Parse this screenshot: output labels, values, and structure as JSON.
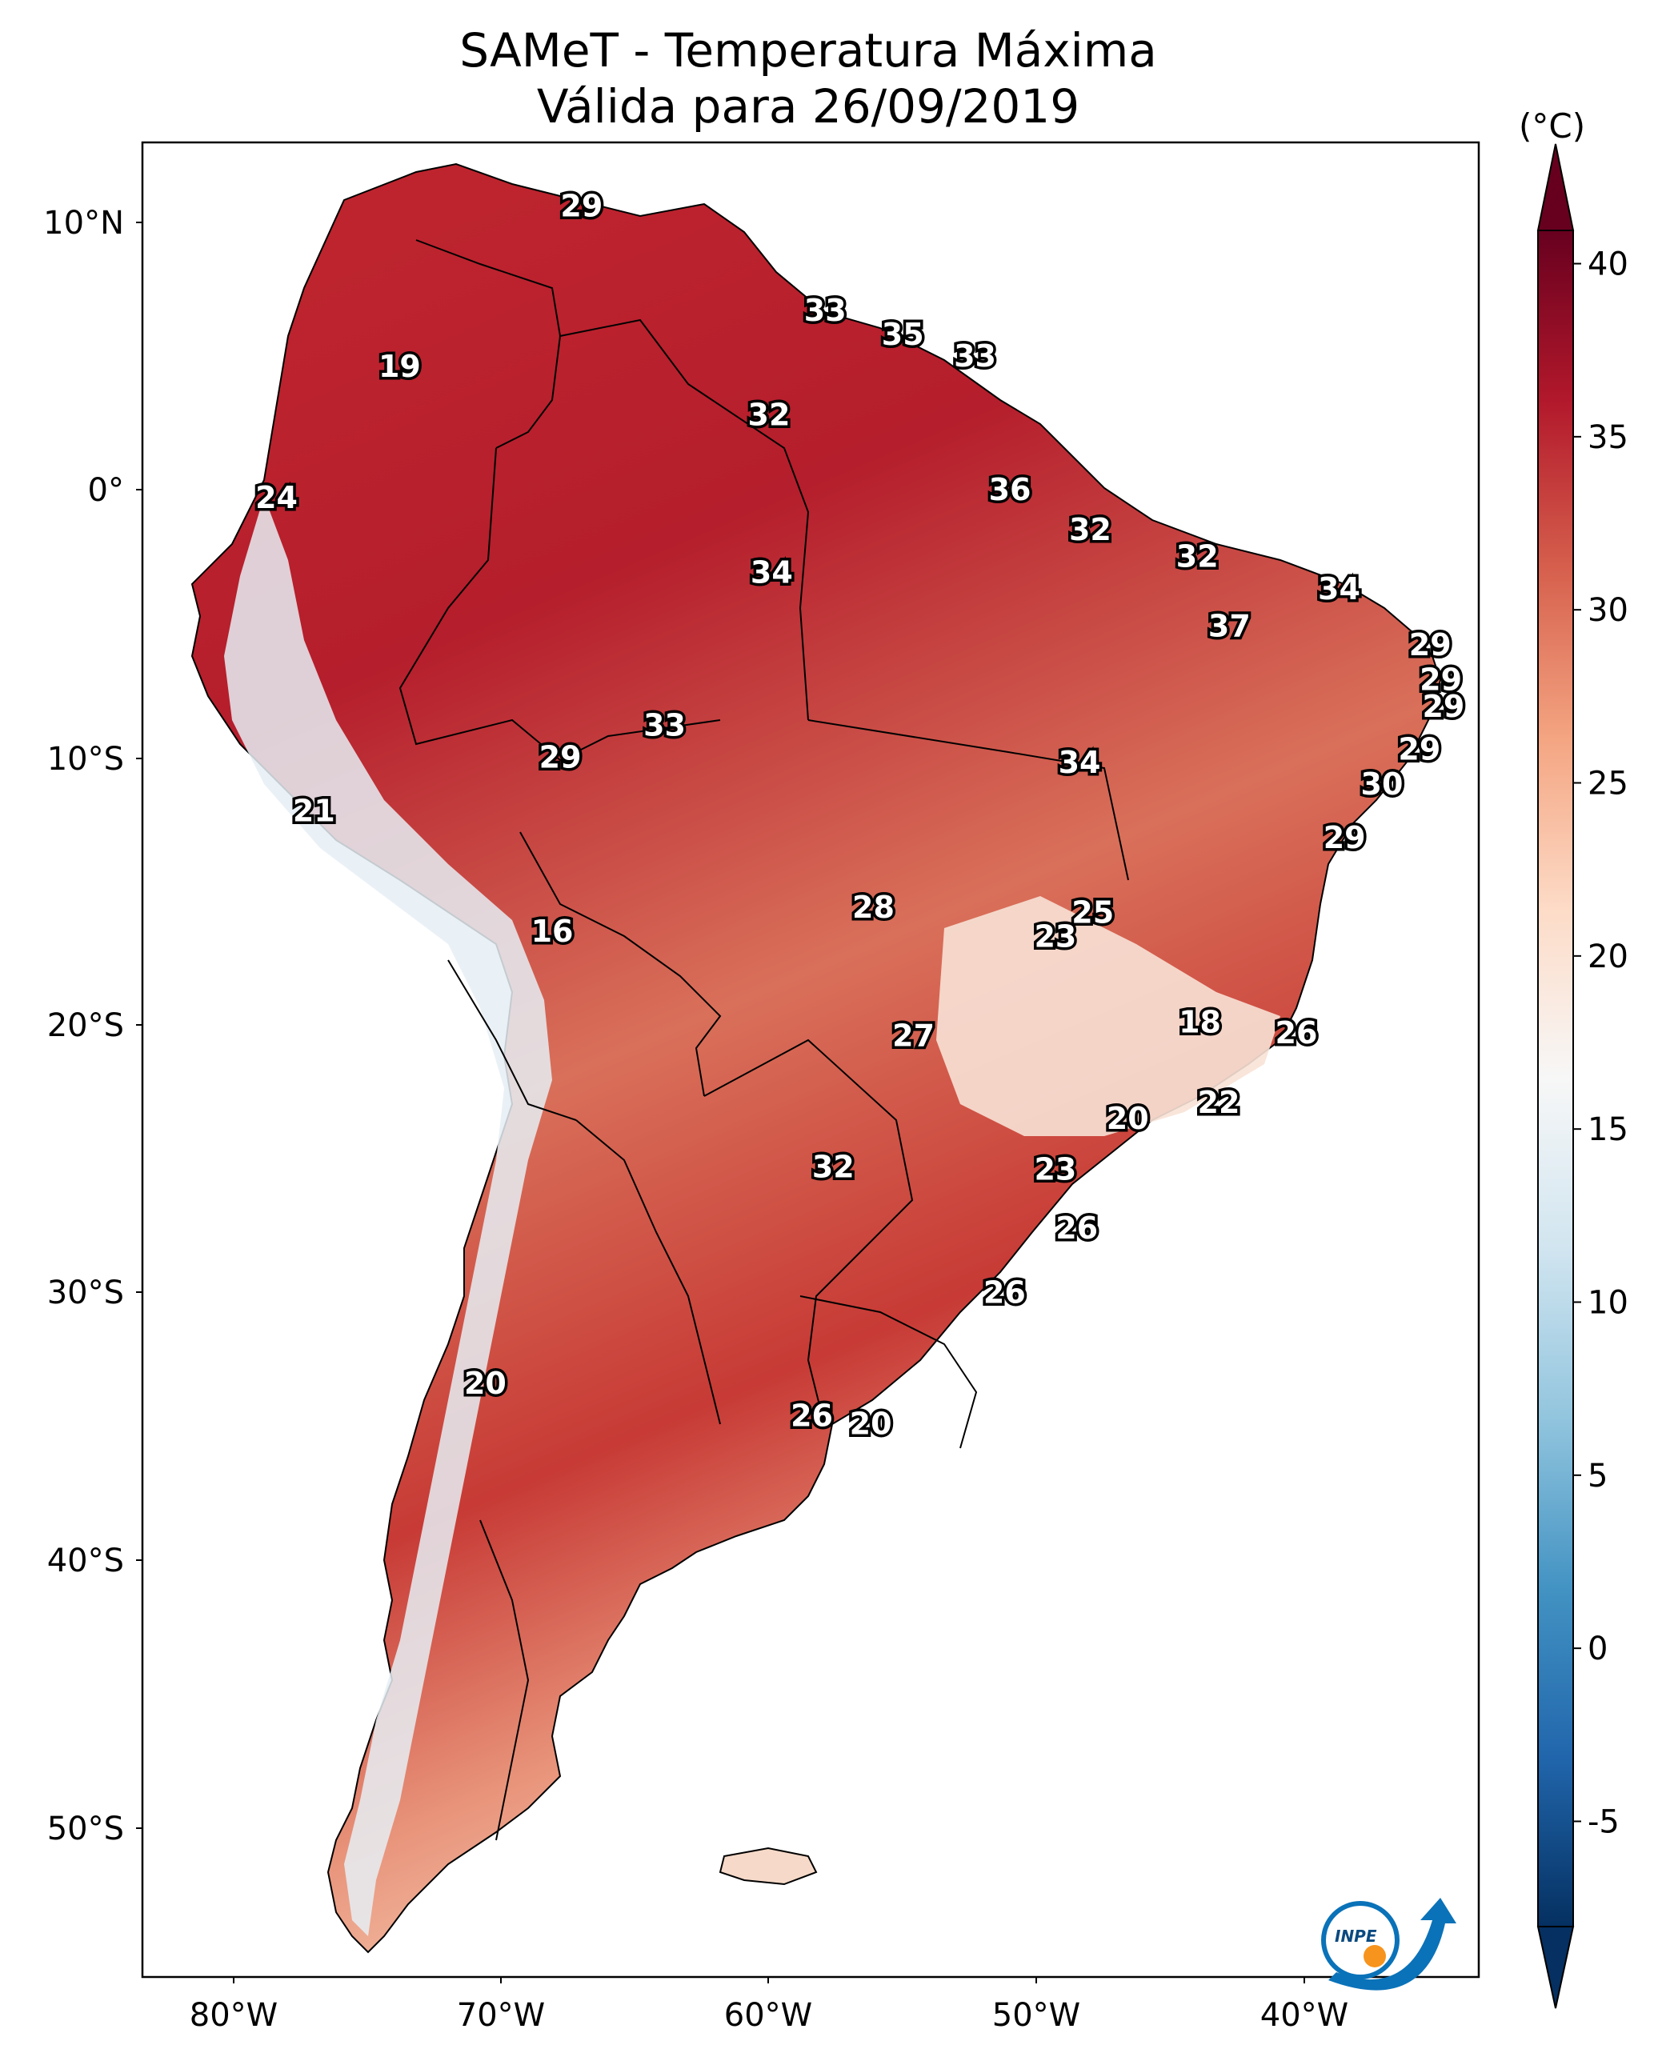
{
  "title": {
    "line1": "SAMeT - Temperatura Máxima",
    "line2": "Válida para 26/09/2019"
  },
  "colorbar": {
    "unit": "(°C)",
    "ticks": [
      "40",
      "35",
      "30",
      "25",
      "20",
      "15",
      "10",
      "5",
      "0",
      "-5"
    ],
    "colors": [
      "#67001f",
      "#b2182b",
      "#d6604d",
      "#f4a582",
      "#fddbc7",
      "#f7f7f7",
      "#d1e5f0",
      "#92c5de",
      "#4393c3",
      "#2166ac",
      "#053061"
    ]
  },
  "axes": {
    "lat_labels": [
      "10°N",
      "0°",
      "10°S",
      "20°S",
      "30°S",
      "40°S",
      "50°S"
    ],
    "lon_labels": [
      "80°W",
      "70°W",
      "60°W",
      "50°W",
      "40°W"
    ]
  },
  "temperature_labels": [
    {
      "value": "29",
      "lon": -67.0,
      "lat": 10.6
    },
    {
      "value": "33",
      "lon": -57.9,
      "lat": 6.7
    },
    {
      "value": "35",
      "lon": -55.0,
      "lat": 5.8
    },
    {
      "value": "33",
      "lon": -52.3,
      "lat": 5.0
    },
    {
      "value": "19",
      "lon": -73.8,
      "lat": 4.6
    },
    {
      "value": "32",
      "lon": -60.0,
      "lat": 2.8
    },
    {
      "value": "24",
      "lon": -78.4,
      "lat": -0.3
    },
    {
      "value": "36",
      "lon": -51.0,
      "lat": 0.0
    },
    {
      "value": "32",
      "lon": -48.0,
      "lat": -1.5
    },
    {
      "value": "32",
      "lon": -44.0,
      "lat": -2.5
    },
    {
      "value": "34",
      "lon": -59.9,
      "lat": -3.1
    },
    {
      "value": "34",
      "lon": -38.7,
      "lat": -3.7
    },
    {
      "value": "37",
      "lon": -42.8,
      "lat": -5.1
    },
    {
      "value": "29",
      "lon": -35.3,
      "lat": -5.8
    },
    {
      "value": "29",
      "lon": -34.9,
      "lat": -7.1
    },
    {
      "value": "29",
      "lon": -34.8,
      "lat": -8.1
    },
    {
      "value": "33",
      "lon": -63.9,
      "lat": -8.8
    },
    {
      "value": "29",
      "lon": -67.8,
      "lat": -10.0
    },
    {
      "value": "34",
      "lon": -48.4,
      "lat": -10.2
    },
    {
      "value": "29",
      "lon": -35.7,
      "lat": -9.7
    },
    {
      "value": "30",
      "lon": -37.1,
      "lat": -11.0
    },
    {
      "value": "21",
      "lon": -77.0,
      "lat": -12.0
    },
    {
      "value": "29",
      "lon": -38.5,
      "lat": -13.0
    },
    {
      "value": "28",
      "lon": -56.1,
      "lat": -15.6
    },
    {
      "value": "25",
      "lon": -47.9,
      "lat": -15.8
    },
    {
      "value": "23",
      "lon": -49.3,
      "lat": -16.7
    },
    {
      "value": "16",
      "lon": -68.1,
      "lat": -16.5
    },
    {
      "value": "18",
      "lon": -43.9,
      "lat": -19.9
    },
    {
      "value": "26",
      "lon": -40.3,
      "lat": -20.3
    },
    {
      "value": "27",
      "lon": -54.6,
      "lat": -20.4
    },
    {
      "value": "22",
      "lon": -43.2,
      "lat": -22.9
    },
    {
      "value": "20",
      "lon": -46.6,
      "lat": -23.5
    },
    {
      "value": "32",
      "lon": -57.6,
      "lat": -25.3
    },
    {
      "value": "23",
      "lon": -49.3,
      "lat": -25.4
    },
    {
      "value": "26",
      "lon": -48.5,
      "lat": -27.6
    },
    {
      "value": "26",
      "lon": -51.2,
      "lat": -30.0
    },
    {
      "value": "20",
      "lon": -70.6,
      "lat": -33.4
    },
    {
      "value": "26",
      "lon": -58.4,
      "lat": -34.6
    },
    {
      "value": "20",
      "lon": -56.2,
      "lat": -34.9
    }
  ],
  "logo": {
    "text": "INPE"
  }
}
